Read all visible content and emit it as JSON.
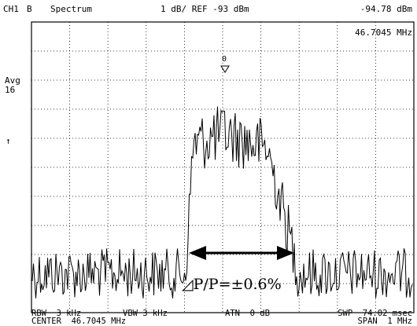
{
  "header": {
    "channel": "CH1",
    "trace": "B",
    "mode": "Spectrum",
    "scale_ref": "1 dB/ REF -93 dBm",
    "marker_level": "-94.78 dBm",
    "marker_freq": "46.7045 MHz"
  },
  "side": {
    "avg_label": "Avg",
    "avg_count": "16",
    "arrow": "↑"
  },
  "marker": {
    "label": "0"
  },
  "annotation": {
    "text": "◿P/P=±0.6%"
  },
  "footer": {
    "rbw": "RBW  3 kHz",
    "vbw": "VBW 3 kHz",
    "atn": "ATN  0 dB",
    "swp": "SWP  74.02 msec",
    "center": "CENTER  46.7045 MHz",
    "span": "SPAN  1 MHz"
  }
}
